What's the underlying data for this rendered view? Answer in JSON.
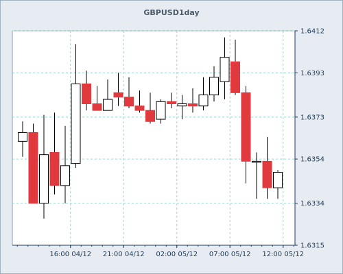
{
  "chart_data": {
    "type": "candlestick",
    "title": "GBPUSD1day",
    "ylim": [
      1.6315,
      1.6412
    ],
    "y_ticks": [
      "1.6412",
      "1.6393",
      "1.6373",
      "1.6354",
      "1.6334",
      "1.6315"
    ],
    "y_tick_values": [
      1.6412,
      1.6393,
      1.6373,
      1.6354,
      1.6334,
      1.6315
    ],
    "x_ticks": [
      "16:00 04/12",
      "21:00 04/12",
      "02:00 05/12",
      "07:00 05/12",
      "12:00 05/12"
    ],
    "x_tick_index": [
      4.5,
      9.5,
      14.5,
      19.5,
      24.5
    ],
    "grid": true,
    "up_color": "#ffffff",
    "down_color": "#e03a3e",
    "candles": [
      {
        "o": 1.6362,
        "h": 1.6371,
        "l": 1.6355,
        "c": 1.6366
      },
      {
        "o": 1.6366,
        "h": 1.637,
        "l": 1.6334,
        "c": 1.6334
      },
      {
        "o": 1.6334,
        "h": 1.6374,
        "l": 1.6327,
        "c": 1.6356
      },
      {
        "o": 1.6357,
        "h": 1.6375,
        "l": 1.6338,
        "c": 1.6342
      },
      {
        "o": 1.6342,
        "h": 1.6369,
        "l": 1.6334,
        "c": 1.6351
      },
      {
        "o": 1.6352,
        "h": 1.6406,
        "l": 1.635,
        "c": 1.6388
      },
      {
        "o": 1.6388,
        "h": 1.6394,
        "l": 1.6376,
        "c": 1.6379
      },
      {
        "o": 1.6379,
        "h": 1.6387,
        "l": 1.6376,
        "c": 1.6376
      },
      {
        "o": 1.6376,
        "h": 1.639,
        "l": 1.6376,
        "c": 1.6381
      },
      {
        "o": 1.6384,
        "h": 1.6393,
        "l": 1.6378,
        "c": 1.6382
      },
      {
        "o": 1.6382,
        "h": 1.6391,
        "l": 1.6377,
        "c": 1.6378
      },
      {
        "o": 1.6378,
        "h": 1.6385,
        "l": 1.6375,
        "c": 1.6376
      },
      {
        "o": 1.6376,
        "h": 1.6384,
        "l": 1.637,
        "c": 1.6371
      },
      {
        "o": 1.6372,
        "h": 1.6381,
        "l": 1.637,
        "c": 1.638
      },
      {
        "o": 1.638,
        "h": 1.6384,
        "l": 1.6377,
        "c": 1.6379
      },
      {
        "o": 1.6378,
        "h": 1.6383,
        "l": 1.6372,
        "c": 1.6379
      },
      {
        "o": 1.6379,
        "h": 1.6386,
        "l": 1.6375,
        "c": 1.6378
      },
      {
        "o": 1.6378,
        "h": 1.6391,
        "l": 1.6376,
        "c": 1.6383
      },
      {
        "o": 1.6383,
        "h": 1.6396,
        "l": 1.638,
        "c": 1.6391
      },
      {
        "o": 1.6389,
        "h": 1.6409,
        "l": 1.6381,
        "c": 1.64
      },
      {
        "o": 1.6398,
        "h": 1.6408,
        "l": 1.6383,
        "c": 1.6384
      },
      {
        "o": 1.6384,
        "h": 1.6387,
        "l": 1.6343,
        "c": 1.6353
      },
      {
        "o": 1.6353,
        "h": 1.6357,
        "l": 1.6336,
        "c": 1.6353
      },
      {
        "o": 1.6353,
        "h": 1.6364,
        "l": 1.6336,
        "c": 1.6341
      },
      {
        "o": 1.6341,
        "h": 1.6349,
        "l": 1.6336,
        "c": 1.6348
      }
    ]
  }
}
